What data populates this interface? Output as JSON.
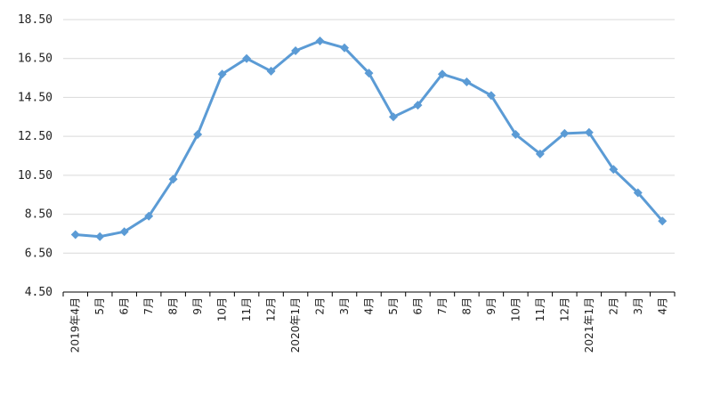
{
  "chart_data": {
    "type": "line",
    "title": "",
    "xlabel": "",
    "ylabel": "",
    "categories": [
      "2019年4月",
      "5月",
      "6月",
      "7月",
      "8月",
      "9月",
      "10月",
      "11月",
      "12月",
      "2020年1月",
      "2月",
      "3月",
      "4月",
      "5月",
      "6月",
      "7月",
      "8月",
      "9月",
      "10月",
      "11月",
      "12月",
      "2021年1月",
      "2月",
      "3月",
      "4月"
    ],
    "series": [
      {
        "values": [
          7.45,
          7.35,
          7.6,
          8.4,
          10.3,
          12.6,
          15.7,
          16.5,
          15.85,
          16.9,
          17.4,
          17.05,
          15.75,
          13.5,
          14.1,
          15.7,
          15.3,
          14.6,
          12.6,
          11.6,
          12.65,
          12.7,
          10.8,
          9.6,
          8.15
        ]
      }
    ],
    "y_ticks": [
      "4.50",
      "6.50",
      "8.50",
      "10.50",
      "12.50",
      "14.50",
      "16.50",
      "18.50"
    ],
    "ylim": [
      4.5,
      18.5
    ],
    "grid": true,
    "legend": "none",
    "colors": {
      "line": "#5B9BD5",
      "grid": "#d9d9d9",
      "axis": "#000000",
      "text": "#222222"
    }
  }
}
